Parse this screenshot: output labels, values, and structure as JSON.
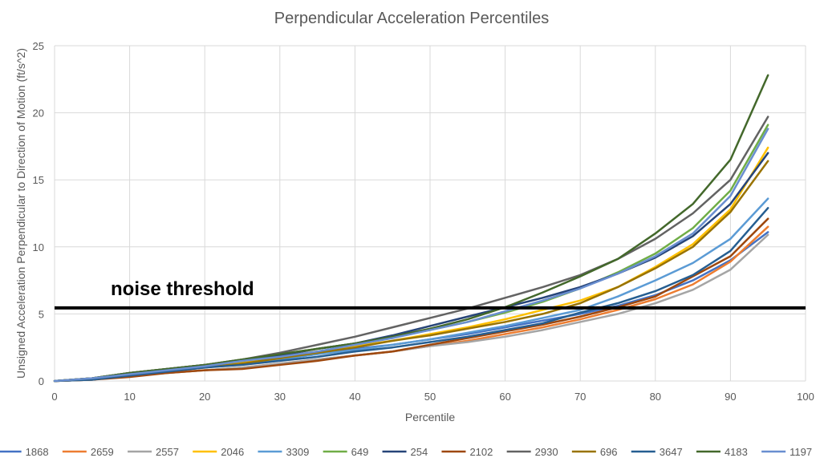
{
  "chart_data": {
    "type": "line",
    "title": "Perpendicular Acceleration Percentiles",
    "xlabel": "Percentile",
    "ylabel": "Unsigned Acceleration Perpendicular to Direction of Motion (ft/s^2)",
    "xlim": [
      0,
      100
    ],
    "ylim": [
      0,
      25
    ],
    "x_ticks": [
      "0",
      "10",
      "20",
      "30",
      "40",
      "50",
      "60",
      "70",
      "80",
      "90",
      "100"
    ],
    "y_ticks": [
      "0",
      "5",
      "10",
      "15",
      "20",
      "25"
    ],
    "grid": true,
    "legend_position": "bottom",
    "x": [
      0,
      5,
      10,
      15,
      20,
      25,
      30,
      35,
      40,
      45,
      50,
      55,
      60,
      65,
      70,
      75,
      80,
      85,
      90,
      95
    ],
    "series": [
      {
        "name": "1868",
        "color": "#4472C4",
        "values": [
          0,
          0.1,
          0.5,
          0.8,
          1.1,
          1.3,
          1.6,
          2.0,
          2.4,
          2.7,
          3.1,
          3.5,
          4.0,
          4.5,
          5.0,
          5.6,
          6.4,
          7.5,
          9.0,
          11.1
        ]
      },
      {
        "name": "2659",
        "color": "#ED7D31",
        "values": [
          0,
          0.1,
          0.4,
          0.6,
          0.8,
          1.0,
          1.3,
          1.6,
          1.9,
          2.2,
          2.6,
          3.0,
          3.5,
          4.0,
          4.6,
          5.3,
          6.1,
          7.2,
          8.9,
          11.5
        ]
      },
      {
        "name": "2557",
        "color": "#A5A5A5",
        "values": [
          0,
          0.1,
          0.4,
          0.6,
          0.8,
          1.0,
          1.3,
          1.6,
          1.9,
          2.2,
          2.6,
          2.9,
          3.3,
          3.8,
          4.4,
          5.0,
          5.8,
          6.8,
          8.3,
          10.9
        ]
      },
      {
        "name": "2046",
        "color": "#FFC000",
        "values": [
          0,
          0.2,
          0.5,
          0.8,
          1.1,
          1.4,
          1.8,
          2.2,
          2.6,
          3.0,
          3.5,
          4.0,
          4.6,
          5.3,
          6.0,
          7.0,
          8.5,
          10.2,
          12.8,
          17.4
        ]
      },
      {
        "name": "3309",
        "color": "#5B9BD5",
        "values": [
          0,
          0.1,
          0.5,
          0.7,
          1.0,
          1.3,
          1.6,
          2.0,
          2.3,
          2.7,
          3.1,
          3.6,
          4.1,
          4.7,
          5.3,
          6.3,
          7.5,
          8.8,
          10.6,
          13.6
        ]
      },
      {
        "name": "649",
        "color": "#70AD47",
        "values": [
          0,
          0.2,
          0.6,
          0.9,
          1.2,
          1.6,
          2.0,
          2.4,
          2.8,
          3.3,
          3.8,
          4.4,
          5.1,
          5.9,
          6.9,
          8.1,
          9.5,
          11.4,
          14.2,
          19.1
        ]
      },
      {
        "name": "254",
        "color": "#264478",
        "values": [
          0,
          0.2,
          0.6,
          0.9,
          1.2,
          1.5,
          1.9,
          2.4,
          2.8,
          3.4,
          4.1,
          4.8,
          5.5,
          6.2,
          7.0,
          8.0,
          9.2,
          10.8,
          13.2,
          17.0
        ]
      },
      {
        "name": "2102",
        "color": "#9E480E",
        "values": [
          0,
          0.1,
          0.3,
          0.6,
          0.8,
          0.9,
          1.2,
          1.5,
          1.9,
          2.2,
          2.7,
          3.2,
          3.7,
          4.2,
          4.8,
          5.5,
          6.3,
          7.8,
          9.3,
          12.1
        ]
      },
      {
        "name": "2930",
        "color": "#636363",
        "values": [
          0,
          0.2,
          0.6,
          0.9,
          1.2,
          1.6,
          2.1,
          2.7,
          3.3,
          4.0,
          4.7,
          5.4,
          6.2,
          7.0,
          7.9,
          9.1,
          10.6,
          12.5,
          15.0,
          19.7
        ]
      },
      {
        "name": "696",
        "color": "#997300",
        "values": [
          0,
          0.2,
          0.5,
          0.8,
          1.0,
          1.3,
          1.7,
          2.1,
          2.5,
          3.0,
          3.4,
          3.9,
          4.4,
          5.0,
          5.8,
          7.0,
          8.4,
          10.0,
          12.6,
          16.4
        ]
      },
      {
        "name": "3647",
        "color": "#255E91",
        "values": [
          0,
          0.1,
          0.4,
          0.7,
          1.0,
          1.2,
          1.5,
          1.8,
          2.2,
          2.5,
          2.9,
          3.3,
          3.8,
          4.3,
          5.1,
          5.8,
          6.7,
          7.9,
          9.7,
          12.9
        ]
      },
      {
        "name": "4183",
        "color": "#43682B",
        "values": [
          0,
          0.2,
          0.6,
          0.9,
          1.2,
          1.6,
          2.0,
          2.4,
          2.8,
          3.3,
          3.9,
          4.6,
          5.5,
          6.6,
          7.8,
          9.1,
          11.0,
          13.2,
          16.5,
          22.8
        ]
      },
      {
        "name": "1197",
        "color": "#698ED0",
        "values": [
          0,
          0.2,
          0.5,
          0.8,
          1.1,
          1.5,
          1.8,
          2.2,
          2.7,
          3.2,
          3.8,
          4.4,
          5.2,
          6.0,
          6.9,
          8.0,
          9.3,
          11.0,
          13.8,
          18.8
        ]
      }
    ],
    "reference_line": {
      "y": 5.45,
      "label": "noise threshold",
      "color": "#000000"
    }
  }
}
